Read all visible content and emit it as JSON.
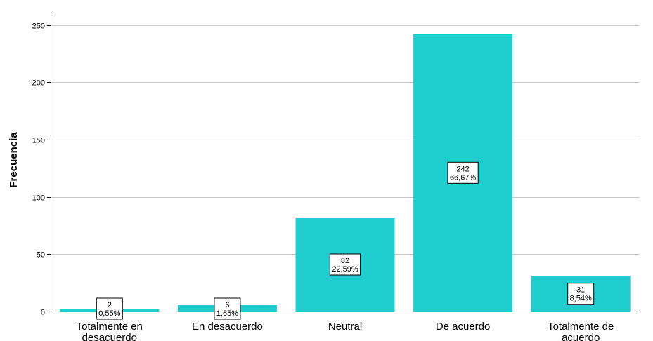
{
  "chart_data": {
    "type": "bar",
    "ylabel": "Frecuencia",
    "xlabel": "",
    "categories": [
      "Totalmente en\ndesacuerdo",
      "En desacuerdo",
      "Neutral",
      "De acuerdo",
      "Totalmente de\nacuerdo"
    ],
    "values": [
      2,
      6,
      82,
      242,
      31
    ],
    "data_labels": [
      {
        "count": "2",
        "percent": "0,55%"
      },
      {
        "count": "6",
        "percent": "1,65%"
      },
      {
        "count": "82",
        "percent": "22,59%"
      },
      {
        "count": "242",
        "percent": "66,67%"
      },
      {
        "count": "31",
        "percent": "8,54%"
      }
    ],
    "ylim": [
      0,
      260
    ],
    "yticks": [
      0,
      50,
      100,
      150,
      200,
      250
    ],
    "ytick_labels": [
      "0",
      "50",
      "100",
      "150",
      "200",
      "250"
    ],
    "grid": "horizontal",
    "bar_color": "#1ecdcd"
  }
}
